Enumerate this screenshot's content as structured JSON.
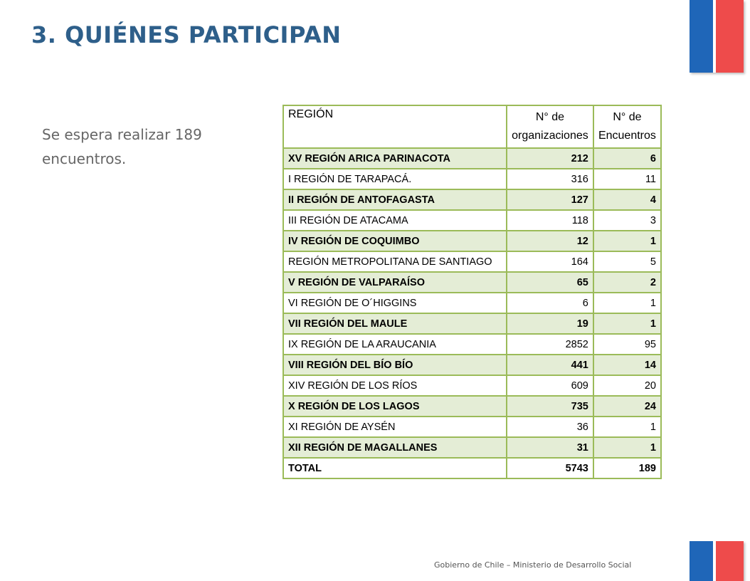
{
  "title": "3. QUIÉNES PARTICIPAN",
  "intro": "Se espera realizar 189 encuentros.",
  "footer": "Gobierno de Chile – Ministerio de Desarrollo Social",
  "colors": {
    "title": "#2E5F8A",
    "flag_blue": "#1F66B8",
    "flag_red": "#EE4B4B",
    "table_border": "#9BBB59",
    "row_shade": "#E4EDD6"
  },
  "table": {
    "headers": {
      "region": "REGIÓN",
      "organizations": "N° de organizaciones",
      "meetings": "N° de Encuentros"
    },
    "rows": [
      {
        "region": "XV REGIÓN ARICA PARINACOTA",
        "organizations": "212",
        "meetings": "6",
        "shaded": true
      },
      {
        "region": "I REGIÓN DE TARAPACÁ.",
        "organizations": "316",
        "meetings": "11",
        "shaded": false
      },
      {
        "region": "II REGIÓN DE ANTOFAGASTA",
        "organizations": "127",
        "meetings": "4",
        "shaded": true
      },
      {
        "region": "III REGIÓN DE ATACAMA",
        "organizations": "118",
        "meetings": "3",
        "shaded": false
      },
      {
        "region": "IV REGIÓN DE COQUIMBO",
        "organizations": "12",
        "meetings": "1",
        "shaded": true
      },
      {
        "region": "REGIÓN METROPOLITANA DE SANTIAGO",
        "organizations": "164",
        "meetings": "5",
        "shaded": false
      },
      {
        "region": "V REGIÓN DE VALPARAÍSO",
        "organizations": "65",
        "meetings": "2",
        "shaded": true
      },
      {
        "region": "VI REGIÓN DE O´HIGGINS",
        "organizations": "6",
        "meetings": "1",
        "shaded": false
      },
      {
        "region": "VII REGIÓN DEL MAULE",
        "organizations": "19",
        "meetings": "1",
        "shaded": true
      },
      {
        "region": "IX REGIÓN DE LA ARAUCANIA",
        "organizations": "2852",
        "meetings": "95",
        "shaded": false
      },
      {
        "region": "VIII REGIÓN DEL BÍO BÍO",
        "organizations": "441",
        "meetings": "14",
        "shaded": true
      },
      {
        "region": "XIV REGIÓN DE LOS RÍOS",
        "organizations": "609",
        "meetings": "20",
        "shaded": false
      },
      {
        "region": "X REGIÓN DE LOS LAGOS",
        "organizations": "735",
        "meetings": "24",
        "shaded": true
      },
      {
        "region": "XI REGIÓN DE AYSÉN",
        "organizations": "36",
        "meetings": "1",
        "shaded": false
      },
      {
        "region": "XII REGIÓN DE MAGALLANES",
        "organizations": "31",
        "meetings": "1",
        "shaded": true
      }
    ],
    "total": {
      "label": "TOTAL",
      "organizations": "5743",
      "meetings": "189"
    }
  }
}
